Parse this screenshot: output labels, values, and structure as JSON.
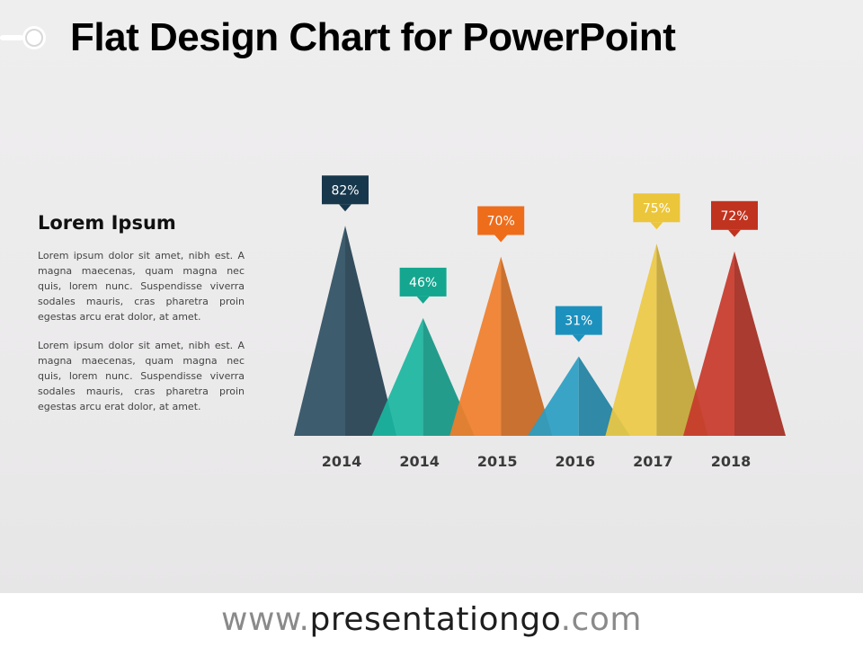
{
  "header": {
    "title": "Flat Design Chart for PowerPoint"
  },
  "sidebar": {
    "heading": "Lorem Ipsum",
    "paragraphs": [
      "Lorem ipsum dolor sit amet, nibh est. A magna maecenas, quam magna nec quis, lorem nunc. Suspendisse viverra sodales mauris, cras pharetra proin egestas arcu erat dolor, at amet.",
      "Lorem ipsum dolor sit amet, nibh est. A magna maecenas, quam magna nec quis, lorem nunc. Suspendisse viverra sodales mauris, cras pharetra proin egestas arcu erat dolor, at amet."
    ]
  },
  "footer": {
    "prefix": "www.",
    "brand": "presentationgo",
    "suffix": ".com"
  },
  "chart_data": {
    "type": "bar",
    "categories": [
      "2014",
      "2014",
      "2015",
      "2016",
      "2017",
      "2018"
    ],
    "values": [
      82,
      46,
      70,
      31,
      75,
      72
    ],
    "data_labels": [
      "82%",
      "46%",
      "70%",
      "31%",
      "75%",
      "72%"
    ],
    "ylim": [
      0,
      100
    ],
    "grid": false,
    "colors": [
      "#2e4f63",
      "#1ab5a0",
      "#f07e2a",
      "#2a9dc2",
      "#ebc944",
      "#c7382a"
    ],
    "label_colors": [
      "#17384c",
      "#14a68f",
      "#ee6d1b",
      "#1d91bd",
      "#ebc63b",
      "#c0331f"
    ]
  }
}
